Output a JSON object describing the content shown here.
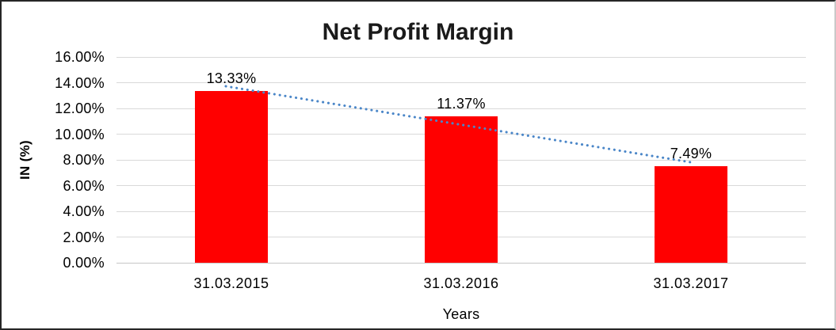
{
  "chart_data": {
    "type": "bar",
    "title": "Net Profit Margin",
    "categories": [
      "31.03.2015",
      "31.03.2016",
      "31.03.2017"
    ],
    "values": [
      13.33,
      11.37,
      7.49
    ],
    "data_labels": [
      "13.33%",
      "11.37%",
      "7.49%"
    ],
    "xlabel": "Years",
    "ylabel": "IN (%)",
    "ylim": [
      0,
      16
    ],
    "ytick_step": 2,
    "ytick_labels": [
      "0.00%",
      "2.00%",
      "4.00%",
      "6.00%",
      "8.00%",
      "10.00%",
      "12.00%",
      "14.00%",
      "16.00%"
    ],
    "grid": true,
    "legend": "none",
    "bar_color": "#ff0000",
    "gridline_color": "#d9d9d9",
    "axis_line_color": "#c6c6c6",
    "text_color": "#000000",
    "trendline": {
      "type": "linear",
      "style": "dotted",
      "color": "#4a86c8"
    }
  }
}
